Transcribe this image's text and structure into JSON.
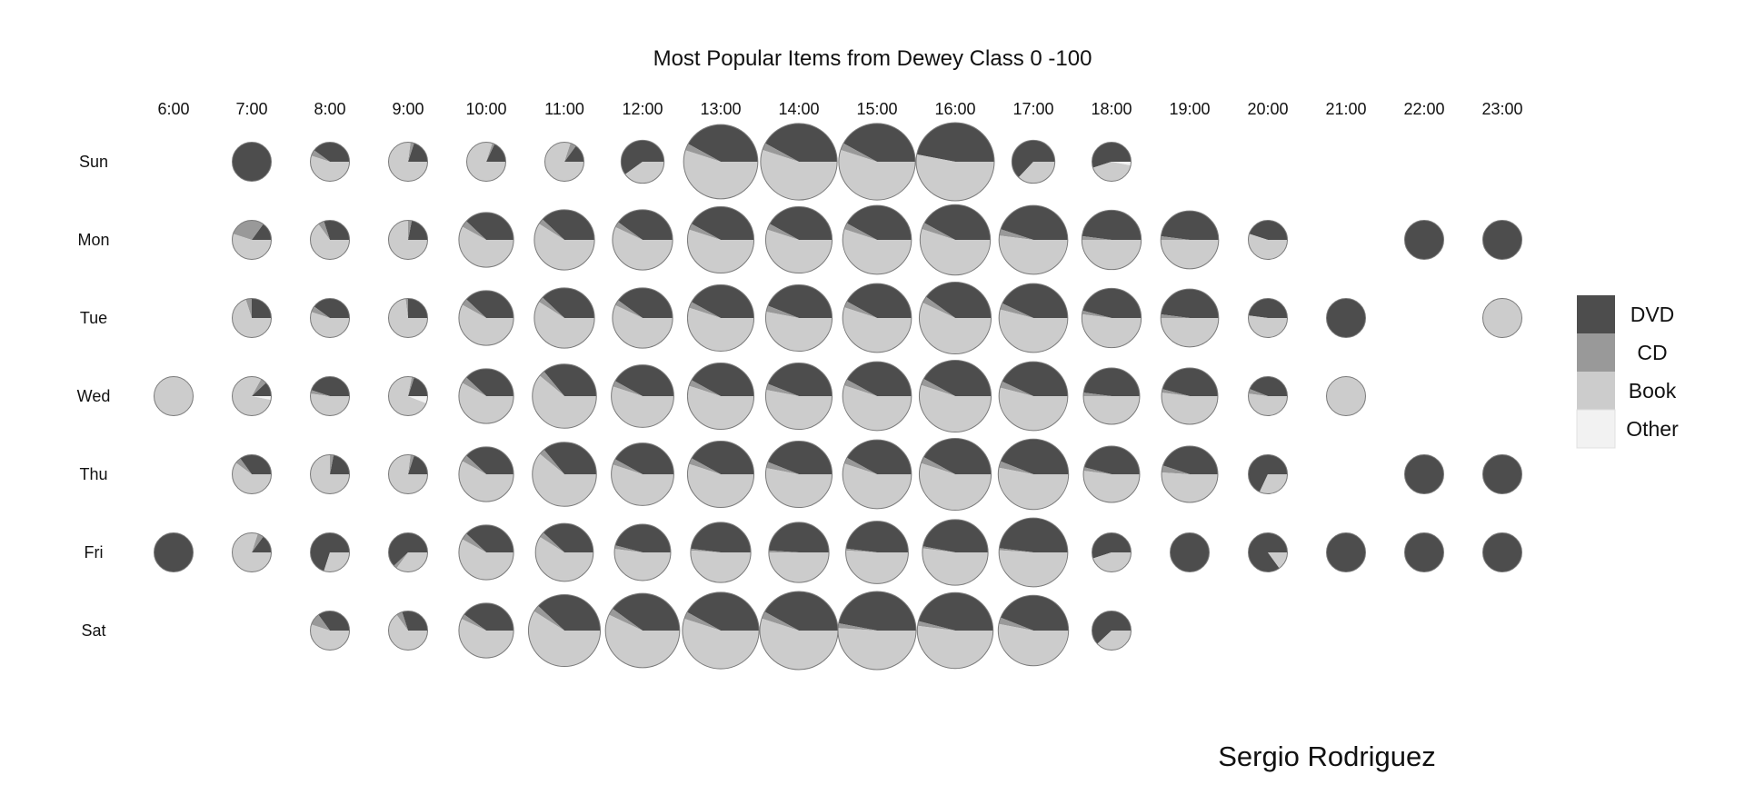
{
  "chart_data": {
    "type": "pie-grid",
    "title": "Most Popular Items from Dewey Class 0 -100",
    "author": "Sergio Rodriguez",
    "hours": [
      "6:00",
      "7:00",
      "8:00",
      "9:00",
      "10:00",
      "11:00",
      "12:00",
      "13:00",
      "14:00",
      "15:00",
      "16:00",
      "17:00",
      "18:00",
      "19:00",
      "20:00",
      "21:00",
      "22:00",
      "23:00"
    ],
    "days": [
      "Sun",
      "Mon",
      "Tue",
      "Wed",
      "Thu",
      "Fri",
      "Sat"
    ],
    "categories": [
      "DVD",
      "CD",
      "Book",
      "Other"
    ],
    "colors": {
      "DVD": "#4d4d4d",
      "CD": "#999999",
      "Book": "#cccccc",
      "Other": "#f2f2f2"
    },
    "legend_position": "right",
    "cells": [
      {
        "day": "Sun",
        "hour": "7:00",
        "size": 0.5,
        "DVD": 1.0,
        "CD": 0.0,
        "Book": 0.0,
        "Other": 0.0
      },
      {
        "day": "Sun",
        "hour": "8:00",
        "size": 0.5,
        "DVD": 0.4,
        "CD": 0.05,
        "Book": 0.55,
        "Other": 0.0
      },
      {
        "day": "Sun",
        "hour": "9:00",
        "size": 0.5,
        "DVD": 0.2,
        "CD": 0.03,
        "Book": 0.77,
        "Other": 0.0
      },
      {
        "day": "Sun",
        "hour": "10:00",
        "size": 0.5,
        "DVD": 0.18,
        "CD": 0.02,
        "Book": 0.8,
        "Other": 0.0
      },
      {
        "day": "Sun",
        "hour": "11:00",
        "size": 0.5,
        "DVD": 0.15,
        "CD": 0.05,
        "Book": 0.8,
        "Other": 0.0
      },
      {
        "day": "Sun",
        "hour": "12:00",
        "size": 0.55,
        "DVD": 0.6,
        "CD": 0.0,
        "Book": 0.4,
        "Other": 0.0
      },
      {
        "day": "Sun",
        "hour": "13:00",
        "size": 0.95,
        "DVD": 0.42,
        "CD": 0.03,
        "Book": 0.55,
        "Other": 0.0
      },
      {
        "day": "Sun",
        "hour": "14:00",
        "size": 0.98,
        "DVD": 0.42,
        "CD": 0.03,
        "Book": 0.55,
        "Other": 0.0
      },
      {
        "day": "Sun",
        "hour": "15:00",
        "size": 0.98,
        "DVD": 0.42,
        "CD": 0.03,
        "Book": 0.55,
        "Other": 0.0
      },
      {
        "day": "Sun",
        "hour": "16:00",
        "size": 1.0,
        "DVD": 0.47,
        "CD": 0.0,
        "Book": 0.53,
        "Other": 0.0
      },
      {
        "day": "Sun",
        "hour": "17:00",
        "size": 0.55,
        "DVD": 0.63,
        "CD": 0.0,
        "Book": 0.37,
        "Other": 0.0
      },
      {
        "day": "Sun",
        "hour": "18:00",
        "size": 0.5,
        "DVD": 0.55,
        "CD": 0.0,
        "Book": 0.42,
        "Other": 0.03
      },
      {
        "day": "Mon",
        "hour": "7:00",
        "size": 0.5,
        "DVD": 0.15,
        "CD": 0.3,
        "Book": 0.55,
        "Other": 0.0
      },
      {
        "day": "Mon",
        "hour": "8:00",
        "size": 0.5,
        "DVD": 0.3,
        "CD": 0.05,
        "Book": 0.65,
        "Other": 0.0
      },
      {
        "day": "Mon",
        "hour": "9:00",
        "size": 0.5,
        "DVD": 0.22,
        "CD": 0.03,
        "Book": 0.75,
        "Other": 0.0
      },
      {
        "day": "Mon",
        "hour": "10:00",
        "size": 0.7,
        "DVD": 0.38,
        "CD": 0.04,
        "Book": 0.58,
        "Other": 0.0
      },
      {
        "day": "Mon",
        "hour": "11:00",
        "size": 0.77,
        "DVD": 0.38,
        "CD": 0.03,
        "Book": 0.59,
        "Other": 0.0
      },
      {
        "day": "Mon",
        "hour": "12:00",
        "size": 0.77,
        "DVD": 0.4,
        "CD": 0.03,
        "Book": 0.57,
        "Other": 0.0
      },
      {
        "day": "Mon",
        "hour": "13:00",
        "size": 0.85,
        "DVD": 0.42,
        "CD": 0.03,
        "Book": 0.55,
        "Other": 0.0
      },
      {
        "day": "Mon",
        "hour": "14:00",
        "size": 0.85,
        "DVD": 0.42,
        "CD": 0.03,
        "Book": 0.55,
        "Other": 0.0
      },
      {
        "day": "Mon",
        "hour": "15:00",
        "size": 0.88,
        "DVD": 0.42,
        "CD": 0.03,
        "Book": 0.55,
        "Other": 0.0
      },
      {
        "day": "Mon",
        "hour": "16:00",
        "size": 0.9,
        "DVD": 0.42,
        "CD": 0.03,
        "Book": 0.55,
        "Other": 0.0
      },
      {
        "day": "Mon",
        "hour": "17:00",
        "size": 0.88,
        "DVD": 0.45,
        "CD": 0.03,
        "Book": 0.52,
        "Other": 0.0
      },
      {
        "day": "Mon",
        "hour": "18:00",
        "size": 0.76,
        "DVD": 0.48,
        "CD": 0.02,
        "Book": 0.5,
        "Other": 0.0
      },
      {
        "day": "Mon",
        "hour": "19:00",
        "size": 0.74,
        "DVD": 0.48,
        "CD": 0.02,
        "Book": 0.5,
        "Other": 0.0
      },
      {
        "day": "Mon",
        "hour": "20:00",
        "size": 0.5,
        "DVD": 0.45,
        "CD": 0.0,
        "Book": 0.55,
        "Other": 0.0
      },
      {
        "day": "Mon",
        "hour": "22:00",
        "size": 0.5,
        "DVD": 1.0,
        "CD": 0.0,
        "Book": 0.0,
        "Other": 0.0
      },
      {
        "day": "Mon",
        "hour": "23:00",
        "size": 0.5,
        "DVD": 1.0,
        "CD": 0.0,
        "Book": 0.0,
        "Other": 0.0
      },
      {
        "day": "Tue",
        "hour": "7:00",
        "size": 0.5,
        "DVD": 0.25,
        "CD": 0.05,
        "Book": 0.7,
        "Other": 0.0
      },
      {
        "day": "Tue",
        "hour": "8:00",
        "size": 0.5,
        "DVD": 0.4,
        "CD": 0.05,
        "Book": 0.55,
        "Other": 0.0
      },
      {
        "day": "Tue",
        "hour": "9:00",
        "size": 0.5,
        "DVD": 0.25,
        "CD": 0.02,
        "Book": 0.73,
        "Other": 0.0
      },
      {
        "day": "Tue",
        "hour": "10:00",
        "size": 0.7,
        "DVD": 0.38,
        "CD": 0.04,
        "Book": 0.58,
        "Other": 0.0
      },
      {
        "day": "Tue",
        "hour": "11:00",
        "size": 0.77,
        "DVD": 0.38,
        "CD": 0.03,
        "Book": 0.59,
        "Other": 0.0
      },
      {
        "day": "Tue",
        "hour": "12:00",
        "size": 0.77,
        "DVD": 0.4,
        "CD": 0.03,
        "Book": 0.57,
        "Other": 0.0
      },
      {
        "day": "Tue",
        "hour": "13:00",
        "size": 0.85,
        "DVD": 0.42,
        "CD": 0.03,
        "Book": 0.55,
        "Other": 0.0
      },
      {
        "day": "Tue",
        "hour": "14:00",
        "size": 0.85,
        "DVD": 0.44,
        "CD": 0.03,
        "Book": 0.53,
        "Other": 0.0
      },
      {
        "day": "Tue",
        "hour": "15:00",
        "size": 0.88,
        "DVD": 0.42,
        "CD": 0.03,
        "Book": 0.55,
        "Other": 0.0
      },
      {
        "day": "Tue",
        "hour": "16:00",
        "size": 0.92,
        "DVD": 0.4,
        "CD": 0.03,
        "Book": 0.57,
        "Other": 0.0
      },
      {
        "day": "Tue",
        "hour": "17:00",
        "size": 0.88,
        "DVD": 0.43,
        "CD": 0.03,
        "Book": 0.54,
        "Other": 0.0
      },
      {
        "day": "Tue",
        "hour": "18:00",
        "size": 0.76,
        "DVD": 0.46,
        "CD": 0.02,
        "Book": 0.52,
        "Other": 0.0
      },
      {
        "day": "Tue",
        "hour": "19:00",
        "size": 0.74,
        "DVD": 0.48,
        "CD": 0.02,
        "Book": 0.5,
        "Other": 0.0
      },
      {
        "day": "Tue",
        "hour": "20:00",
        "size": 0.5,
        "DVD": 0.48,
        "CD": 0.0,
        "Book": 0.52,
        "Other": 0.0
      },
      {
        "day": "Tue",
        "hour": "21:00",
        "size": 0.5,
        "DVD": 1.0,
        "CD": 0.0,
        "Book": 0.0,
        "Other": 0.0
      },
      {
        "day": "Tue",
        "hour": "23:00",
        "size": 0.5,
        "DVD": 0.0,
        "CD": 0.0,
        "Book": 1.0,
        "Other": 0.0
      },
      {
        "day": "Wed",
        "hour": "6:00",
        "size": 0.5,
        "DVD": 0.0,
        "CD": 0.0,
        "Book": 1.0,
        "Other": 0.0
      },
      {
        "day": "Wed",
        "hour": "7:00",
        "size": 0.5,
        "DVD": 0.12,
        "CD": 0.05,
        "Book": 0.8,
        "Other": 0.03
      },
      {
        "day": "Wed",
        "hour": "8:00",
        "size": 0.5,
        "DVD": 0.45,
        "CD": 0.03,
        "Book": 0.52,
        "Other": 0.0
      },
      {
        "day": "Wed",
        "hour": "9:00",
        "size": 0.5,
        "DVD": 0.2,
        "CD": 0.02,
        "Book": 0.72,
        "Other": 0.06
      },
      {
        "day": "Wed",
        "hour": "10:00",
        "size": 0.7,
        "DVD": 0.38,
        "CD": 0.04,
        "Book": 0.58,
        "Other": 0.0
      },
      {
        "day": "Wed",
        "hour": "11:00",
        "size": 0.82,
        "DVD": 0.36,
        "CD": 0.03,
        "Book": 0.61,
        "Other": 0.0
      },
      {
        "day": "Wed",
        "hour": "12:00",
        "size": 0.8,
        "DVD": 0.42,
        "CD": 0.03,
        "Book": 0.55,
        "Other": 0.0
      },
      {
        "day": "Wed",
        "hour": "13:00",
        "size": 0.85,
        "DVD": 0.42,
        "CD": 0.03,
        "Book": 0.55,
        "Other": 0.0
      },
      {
        "day": "Wed",
        "hour": "14:00",
        "size": 0.85,
        "DVD": 0.44,
        "CD": 0.03,
        "Book": 0.53,
        "Other": 0.0
      },
      {
        "day": "Wed",
        "hour": "15:00",
        "size": 0.88,
        "DVD": 0.42,
        "CD": 0.03,
        "Book": 0.55,
        "Other": 0.0
      },
      {
        "day": "Wed",
        "hour": "16:00",
        "size": 0.92,
        "DVD": 0.42,
        "CD": 0.03,
        "Book": 0.55,
        "Other": 0.0
      },
      {
        "day": "Wed",
        "hour": "17:00",
        "size": 0.88,
        "DVD": 0.43,
        "CD": 0.03,
        "Book": 0.54,
        "Other": 0.0
      },
      {
        "day": "Wed",
        "hour": "18:00",
        "size": 0.72,
        "DVD": 0.48,
        "CD": 0.02,
        "Book": 0.5,
        "Other": 0.0
      },
      {
        "day": "Wed",
        "hour": "19:00",
        "size": 0.72,
        "DVD": 0.46,
        "CD": 0.02,
        "Book": 0.52,
        "Other": 0.0
      },
      {
        "day": "Wed",
        "hour": "20:00",
        "size": 0.5,
        "DVD": 0.44,
        "CD": 0.04,
        "Book": 0.52,
        "Other": 0.0
      },
      {
        "day": "Wed",
        "hour": "21:00",
        "size": 0.5,
        "DVD": 0.0,
        "CD": 0.0,
        "Book": 1.0,
        "Other": 0.0
      },
      {
        "day": "Thu",
        "hour": "7:00",
        "size": 0.5,
        "DVD": 0.35,
        "CD": 0.05,
        "Book": 0.6,
        "Other": 0.0
      },
      {
        "day": "Thu",
        "hour": "8:00",
        "size": 0.5,
        "DVD": 0.22,
        "CD": 0.03,
        "Book": 0.75,
        "Other": 0.0
      },
      {
        "day": "Thu",
        "hour": "9:00",
        "size": 0.5,
        "DVD": 0.2,
        "CD": 0.03,
        "Book": 0.77,
        "Other": 0.0
      },
      {
        "day": "Thu",
        "hour": "10:00",
        "size": 0.7,
        "DVD": 0.38,
        "CD": 0.04,
        "Book": 0.58,
        "Other": 0.0
      },
      {
        "day": "Thu",
        "hour": "11:00",
        "size": 0.82,
        "DVD": 0.36,
        "CD": 0.03,
        "Book": 0.61,
        "Other": 0.0
      },
      {
        "day": "Thu",
        "hour": "12:00",
        "size": 0.8,
        "DVD": 0.42,
        "CD": 0.03,
        "Book": 0.55,
        "Other": 0.0
      },
      {
        "day": "Thu",
        "hour": "13:00",
        "size": 0.85,
        "DVD": 0.42,
        "CD": 0.03,
        "Book": 0.55,
        "Other": 0.0
      },
      {
        "day": "Thu",
        "hour": "14:00",
        "size": 0.85,
        "DVD": 0.44,
        "CD": 0.03,
        "Book": 0.53,
        "Other": 0.0
      },
      {
        "day": "Thu",
        "hour": "15:00",
        "size": 0.88,
        "DVD": 0.42,
        "CD": 0.03,
        "Book": 0.55,
        "Other": 0.0
      },
      {
        "day": "Thu",
        "hour": "16:00",
        "size": 0.92,
        "DVD": 0.42,
        "CD": 0.03,
        "Book": 0.55,
        "Other": 0.0
      },
      {
        "day": "Thu",
        "hour": "17:00",
        "size": 0.9,
        "DVD": 0.44,
        "CD": 0.03,
        "Book": 0.53,
        "Other": 0.0
      },
      {
        "day": "Thu",
        "hour": "18:00",
        "size": 0.72,
        "DVD": 0.46,
        "CD": 0.02,
        "Book": 0.52,
        "Other": 0.0
      },
      {
        "day": "Thu",
        "hour": "19:00",
        "size": 0.72,
        "DVD": 0.45,
        "CD": 0.04,
        "Book": 0.51,
        "Other": 0.0
      },
      {
        "day": "Thu",
        "hour": "20:00",
        "size": 0.5,
        "DVD": 0.68,
        "CD": 0.0,
        "Book": 0.32,
        "Other": 0.0
      },
      {
        "day": "Thu",
        "hour": "22:00",
        "size": 0.5,
        "DVD": 1.0,
        "CD": 0.0,
        "Book": 0.0,
        "Other": 0.0
      },
      {
        "day": "Thu",
        "hour": "23:00",
        "size": 0.5,
        "DVD": 1.0,
        "CD": 0.0,
        "Book": 0.0,
        "Other": 0.0
      },
      {
        "day": "Fri",
        "hour": "6:00",
        "size": 0.5,
        "DVD": 1.0,
        "CD": 0.0,
        "Book": 0.0,
        "Other": 0.0
      },
      {
        "day": "Fri",
        "hour": "7:00",
        "size": 0.5,
        "DVD": 0.15,
        "CD": 0.05,
        "Book": 0.8,
        "Other": 0.0
      },
      {
        "day": "Fri",
        "hour": "8:00",
        "size": 0.5,
        "DVD": 0.7,
        "CD": 0.0,
        "Book": 0.3,
        "Other": 0.0
      },
      {
        "day": "Fri",
        "hour": "9:00",
        "size": 0.5,
        "DVD": 0.62,
        "CD": 0.03,
        "Book": 0.35,
        "Other": 0.0
      },
      {
        "day": "Fri",
        "hour": "10:00",
        "size": 0.7,
        "DVD": 0.38,
        "CD": 0.04,
        "Book": 0.58,
        "Other": 0.0
      },
      {
        "day": "Fri",
        "hour": "11:00",
        "size": 0.74,
        "DVD": 0.38,
        "CD": 0.03,
        "Book": 0.59,
        "Other": 0.0
      },
      {
        "day": "Fri",
        "hour": "12:00",
        "size": 0.72,
        "DVD": 0.46,
        "CD": 0.02,
        "Book": 0.52,
        "Other": 0.0
      },
      {
        "day": "Fri",
        "hour": "13:00",
        "size": 0.77,
        "DVD": 0.48,
        "CD": 0.01,
        "Book": 0.51,
        "Other": 0.0
      },
      {
        "day": "Fri",
        "hour": "14:00",
        "size": 0.77,
        "DVD": 0.49,
        "CD": 0.01,
        "Book": 0.5,
        "Other": 0.0
      },
      {
        "day": "Fri",
        "hour": "15:00",
        "size": 0.8,
        "DVD": 0.48,
        "CD": 0.01,
        "Book": 0.51,
        "Other": 0.0
      },
      {
        "day": "Fri",
        "hour": "16:00",
        "size": 0.84,
        "DVD": 0.47,
        "CD": 0.01,
        "Book": 0.52,
        "Other": 0.0
      },
      {
        "day": "Fri",
        "hour": "17:00",
        "size": 0.88,
        "DVD": 0.48,
        "CD": 0.01,
        "Book": 0.51,
        "Other": 0.0
      },
      {
        "day": "Fri",
        "hour": "18:00",
        "size": 0.5,
        "DVD": 0.55,
        "CD": 0.0,
        "Book": 0.45,
        "Other": 0.0
      },
      {
        "day": "Fri",
        "hour": "19:00",
        "size": 0.5,
        "DVD": 1.0,
        "CD": 0.0,
        "Book": 0.0,
        "Other": 0.0
      },
      {
        "day": "Fri",
        "hour": "20:00",
        "size": 0.5,
        "DVD": 0.85,
        "CD": 0.0,
        "Book": 0.15,
        "Other": 0.0
      },
      {
        "day": "Fri",
        "hour": "21:00",
        "size": 0.5,
        "DVD": 1.0,
        "CD": 0.0,
        "Book": 0.0,
        "Other": 0.0
      },
      {
        "day": "Fri",
        "hour": "22:00",
        "size": 0.5,
        "DVD": 1.0,
        "CD": 0.0,
        "Book": 0.0,
        "Other": 0.0
      },
      {
        "day": "Fri",
        "hour": "23:00",
        "size": 0.5,
        "DVD": 1.0,
        "CD": 0.0,
        "Book": 0.0,
        "Other": 0.0
      },
      {
        "day": "Sat",
        "hour": "8:00",
        "size": 0.5,
        "DVD": 0.35,
        "CD": 0.1,
        "Book": 0.55,
        "Other": 0.0
      },
      {
        "day": "Sat",
        "hour": "9:00",
        "size": 0.5,
        "DVD": 0.3,
        "CD": 0.05,
        "Book": 0.65,
        "Other": 0.0
      },
      {
        "day": "Sat",
        "hour": "10:00",
        "size": 0.7,
        "DVD": 0.4,
        "CD": 0.03,
        "Book": 0.57,
        "Other": 0.0
      },
      {
        "day": "Sat",
        "hour": "11:00",
        "size": 0.92,
        "DVD": 0.38,
        "CD": 0.03,
        "Book": 0.59,
        "Other": 0.0
      },
      {
        "day": "Sat",
        "hour": "12:00",
        "size": 0.95,
        "DVD": 0.4,
        "CD": 0.03,
        "Book": 0.57,
        "Other": 0.0
      },
      {
        "day": "Sat",
        "hour": "13:00",
        "size": 0.98,
        "DVD": 0.42,
        "CD": 0.03,
        "Book": 0.55,
        "Other": 0.0
      },
      {
        "day": "Sat",
        "hour": "14:00",
        "size": 1.0,
        "DVD": 0.42,
        "CD": 0.03,
        "Book": 0.55,
        "Other": 0.0
      },
      {
        "day": "Sat",
        "hour": "15:00",
        "size": 1.0,
        "DVD": 0.47,
        "CD": 0.02,
        "Book": 0.51,
        "Other": 0.0
      },
      {
        "day": "Sat",
        "hour": "16:00",
        "size": 0.97,
        "DVD": 0.46,
        "CD": 0.02,
        "Book": 0.52,
        "Other": 0.0
      },
      {
        "day": "Sat",
        "hour": "17:00",
        "size": 0.9,
        "DVD": 0.44,
        "CD": 0.03,
        "Book": 0.53,
        "Other": 0.0
      },
      {
        "day": "Sat",
        "hour": "18:00",
        "size": 0.5,
        "DVD": 0.62,
        "CD": 0.0,
        "Book": 0.38,
        "Other": 0.0
      }
    ]
  }
}
